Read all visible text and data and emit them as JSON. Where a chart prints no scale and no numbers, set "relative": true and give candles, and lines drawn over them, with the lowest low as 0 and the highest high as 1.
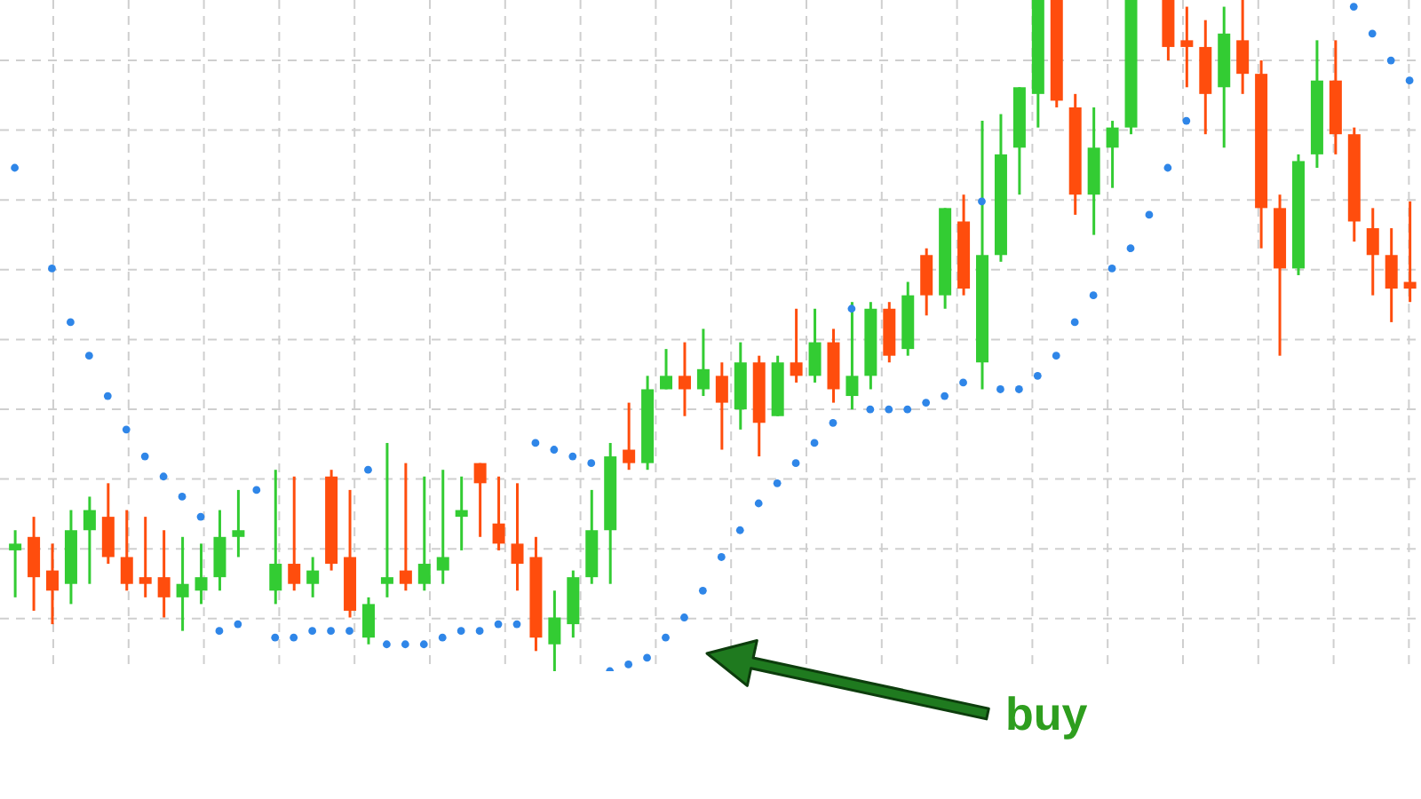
{
  "chart_data": {
    "type": "candlestick",
    "relative": true,
    "grid": true,
    "categories": [
      null,
      null,
      null,
      null,
      null,
      null,
      null,
      null,
      null,
      null,
      null,
      null,
      null,
      null,
      null,
      null,
      null,
      null,
      null,
      null,
      null,
      null,
      null,
      null,
      null,
      null,
      null,
      null,
      null,
      null,
      null,
      null,
      null,
      null,
      null,
      null,
      null,
      null,
      null,
      null,
      null,
      null,
      null,
      null,
      null,
      null,
      null,
      null,
      null,
      null,
      null,
      null,
      null,
      null,
      null,
      null,
      null,
      null,
      null,
      null,
      null,
      null,
      null,
      null,
      null,
      null,
      null,
      null,
      null,
      null,
      null,
      null,
      null,
      null,
      null,
      null
    ],
    "ohlc": [
      [
        0.18,
        0.21,
        0.11,
        0.19
      ],
      [
        0.2,
        0.23,
        0.09,
        0.14
      ],
      [
        0.15,
        0.19,
        0.07,
        0.12
      ],
      [
        0.13,
        0.24,
        0.1,
        0.21
      ],
      [
        0.21,
        0.26,
        0.13,
        0.24
      ],
      [
        0.23,
        0.28,
        0.16,
        0.17
      ],
      [
        0.17,
        0.24,
        0.12,
        0.13
      ],
      [
        0.14,
        0.23,
        0.11,
        0.13
      ],
      [
        0.14,
        0.21,
        0.08,
        0.11
      ],
      [
        0.11,
        0.2,
        0.06,
        0.13
      ],
      [
        0.12,
        0.19,
        0.1,
        0.14
      ],
      [
        0.14,
        0.24,
        0.12,
        0.2
      ],
      [
        0.2,
        0.27,
        0.17,
        0.21
      ],
      null,
      [
        0.12,
        0.3,
        0.1,
        0.16
      ],
      [
        0.16,
        0.29,
        0.12,
        0.13
      ],
      [
        0.13,
        0.17,
        0.11,
        0.15
      ],
      [
        0.29,
        0.3,
        0.15,
        0.16
      ],
      [
        0.17,
        0.27,
        0.08,
        0.09
      ],
      [
        0.05,
        0.11,
        0.04,
        0.1
      ],
      [
        0.13,
        0.34,
        0.11,
        0.14
      ],
      [
        0.15,
        0.31,
        0.12,
        0.13
      ],
      [
        0.13,
        0.29,
        0.12,
        0.16
      ],
      [
        0.15,
        0.3,
        0.13,
        0.17
      ],
      [
        0.23,
        0.29,
        0.18,
        0.24
      ],
      [
        0.31,
        0.31,
        0.2,
        0.28
      ],
      [
        0.22,
        0.29,
        0.18,
        0.19
      ],
      [
        0.19,
        0.28,
        0.12,
        0.16
      ],
      [
        0.17,
        0.2,
        0.03,
        0.05
      ],
      [
        0.04,
        0.12,
        0,
        0.08
      ],
      [
        0.07,
        0.15,
        0.05,
        0.14
      ],
      [
        0.14,
        0.27,
        0.13,
        0.21
      ],
      [
        0.21,
        0.34,
        0.13,
        0.32
      ],
      [
        0.33,
        0.4,
        0.3,
        0.31
      ],
      [
        0.31,
        0.44,
        0.3,
        0.42
      ],
      [
        0.42,
        0.48,
        0.42,
        0.44
      ],
      [
        0.44,
        0.49,
        0.38,
        0.42
      ],
      [
        0.42,
        0.51,
        0.41,
        0.45
      ],
      [
        0.44,
        0.46,
        0.33,
        0.4
      ],
      [
        0.39,
        0.49,
        0.36,
        0.46
      ],
      [
        0.46,
        0.47,
        0.32,
        0.37
      ],
      [
        0.38,
        0.47,
        0.38,
        0.46
      ],
      [
        0.46,
        0.54,
        0.43,
        0.44
      ],
      [
        0.44,
        0.54,
        0.43,
        0.49
      ],
      [
        0.49,
        0.51,
        0.4,
        0.42
      ],
      [
        0.41,
        0.55,
        0.39,
        0.44
      ],
      [
        0.44,
        0.55,
        0.42,
        0.54
      ],
      [
        0.54,
        0.55,
        0.46,
        0.47
      ],
      [
        0.48,
        0.58,
        0.47,
        0.56
      ],
      [
        0.62,
        0.63,
        0.53,
        0.56
      ],
      [
        0.56,
        0.69,
        0.54,
        0.69
      ],
      [
        0.67,
        0.71,
        0.56,
        0.57
      ],
      [
        0.46,
        0.82,
        0.42,
        0.62
      ],
      [
        0.62,
        0.83,
        0.61,
        0.77
      ],
      [
        0.78,
        0.87,
        0.71,
        0.87
      ],
      [
        0.86,
        1,
        0.81,
        1
      ],
      [
        1,
        1,
        0.84,
        0.85
      ],
      [
        0.84,
        0.86,
        0.68,
        0.71
      ],
      [
        0.71,
        0.84,
        0.65,
        0.78
      ],
      [
        0.78,
        0.82,
        0.72,
        0.81
      ],
      [
        0.81,
        1,
        0.8,
        1
      ],
      null,
      [
        1,
        1,
        0.91,
        0.93
      ],
      [
        0.94,
        0.99,
        0.87,
        0.93
      ],
      [
        0.93,
        0.97,
        0.8,
        0.86
      ],
      [
        0.87,
        0.99,
        0.78,
        0.95
      ],
      [
        0.94,
        1,
        0.86,
        0.89
      ],
      [
        0.89,
        0.91,
        0.63,
        0.69
      ],
      [
        0.69,
        0.71,
        0.47,
        0.6
      ],
      [
        0.6,
        0.77,
        0.59,
        0.76
      ],
      [
        0.77,
        0.94,
        0.75,
        0.88
      ],
      [
        0.88,
        0.94,
        0.77,
        0.8
      ],
      [
        0.8,
        0.81,
        0.64,
        0.67
      ],
      [
        0.66,
        0.69,
        0.56,
        0.62
      ],
      [
        0.62,
        0.66,
        0.52,
        0.57
      ],
      [
        0.58,
        0.7,
        0.55,
        0.57
      ]
    ],
    "colors": [
      "#33cc33",
      "#ff4d0d",
      "#ff4d0d",
      "#33cc33",
      "#33cc33",
      "#ff4d0d",
      "#ff4d0d",
      "#ff4d0d",
      "#ff4d0d",
      "#33cc33",
      "#33cc33",
      "#33cc33",
      "#33cc33",
      null,
      "#33cc33",
      "#ff4d0d",
      "#33cc33",
      "#ff4d0d",
      "#ff4d0d",
      "#33cc33",
      "#33cc33",
      "#ff4d0d",
      "#33cc33",
      "#33cc33",
      "#33cc33",
      "#ff4d0d",
      "#ff4d0d",
      "#ff4d0d",
      "#ff4d0d",
      "#33cc33",
      "#33cc33",
      "#33cc33",
      "#33cc33",
      "#ff4d0d",
      "#33cc33",
      "#33cc33",
      "#ff4d0d",
      "#33cc33",
      "#ff4d0d",
      "#33cc33",
      "#ff4d0d",
      "#33cc33",
      "#ff4d0d",
      "#33cc33",
      "#ff4d0d",
      "#33cc33",
      "#33cc33",
      "#ff4d0d",
      "#33cc33",
      "#ff4d0d",
      "#33cc33",
      "#ff4d0d",
      "#33cc33",
      "#33cc33",
      "#33cc33",
      "#33cc33",
      "#ff4d0d",
      "#ff4d0d",
      "#33cc33",
      "#33cc33",
      "#33cc33",
      null,
      "#ff4d0d",
      "#ff4d0d",
      "#ff4d0d",
      "#33cc33",
      "#ff4d0d",
      "#ff4d0d",
      "#ff4d0d",
      "#33cc33",
      "#33cc33",
      "#ff4d0d",
      "#ff4d0d",
      "#ff4d0d",
      "#ff4d0d",
      "#ff4d0d"
    ],
    "series": [
      {
        "type": "scatter",
        "color": "#2f86e8",
        "values": [
          0.75,
          null,
          0.6,
          0.52,
          0.47,
          0.41,
          0.36,
          0.32,
          0.29,
          0.26,
          0.23,
          0.06,
          0.07,
          0.27,
          0.05,
          0.05,
          0.06,
          0.06,
          0.06,
          0.3,
          0.04,
          0.04,
          0.04,
          0.05,
          0.06,
          0.06,
          0.07,
          0.07,
          0.34,
          0.33,
          0.32,
          0.31,
          0,
          0.01,
          0.02,
          0.05,
          0.08,
          0.12,
          0.17,
          0.21,
          0.25,
          0.28,
          0.31,
          0.34,
          0.37,
          0.54,
          0.39,
          0.39,
          0.39,
          0.4,
          0.41,
          0.43,
          0.7,
          0.42,
          0.42,
          0.44,
          0.47,
          0.52,
          0.56,
          0.6,
          0.63,
          0.68,
          0.75,
          0.82,
          null,
          null,
          null,
          null,
          null,
          null,
          null,
          null,
          0.99,
          0.95,
          0.91,
          0.88
        ]
      }
    ],
    "annotations": [
      "buy"
    ]
  }
}
